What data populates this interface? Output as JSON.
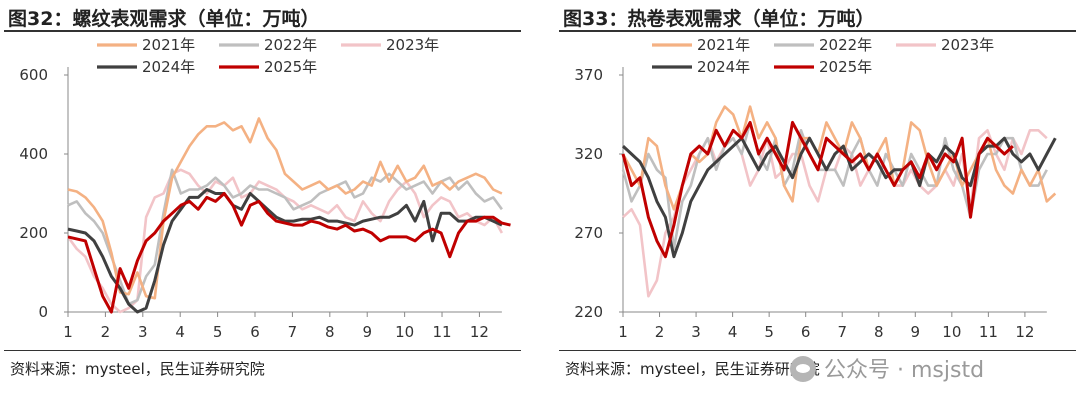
{
  "watermark": {
    "text": "公众号 · msjstd",
    "icon": "wechat-icon"
  },
  "chart_data": [
    {
      "type": "line",
      "title": "图32：螺纹表观需求（单位：万吨）",
      "source": "资料来源：mysteel，民生证券研究院",
      "x_ticks": [
        "1",
        "2",
        "3",
        "4",
        "5",
        "6",
        "7",
        "8",
        "9",
        "10",
        "11",
        "12"
      ],
      "ylim": [
        0,
        600
      ],
      "y_ticks": [
        0,
        200,
        400,
        600
      ],
      "legend_position": "top",
      "series": [
        {
          "name": "2021年",
          "color": "#f4b183",
          "values": [
            310,
            305,
            290,
            265,
            230,
            150,
            50,
            45,
            100,
            40,
            35,
            230,
            340,
            380,
            420,
            450,
            470,
            470,
            480,
            460,
            470,
            430,
            490,
            440,
            410,
            350,
            330,
            310,
            320,
            330,
            310,
            320,
            300,
            310,
            330,
            320,
            380,
            330,
            370,
            330,
            340,
            370,
            320,
            330,
            310,
            330,
            340,
            350,
            340,
            310,
            300
          ]
        },
        {
          "name": "2022年",
          "color": "#bfbfbf",
          "values": [
            270,
            280,
            250,
            230,
            200,
            140,
            80,
            20,
            30,
            90,
            120,
            250,
            360,
            300,
            310,
            310,
            320,
            340,
            320,
            290,
            300,
            320,
            310,
            310,
            300,
            290,
            260,
            270,
            280,
            300,
            310,
            320,
            330,
            290,
            300,
            340,
            330,
            350,
            330,
            310,
            320,
            330,
            300,
            330,
            340,
            310,
            330,
            300,
            280,
            290,
            260
          ]
        },
        {
          "name": "2023年",
          "color": "#f2c4c8",
          "values": [
            190,
            160,
            140,
            90,
            60,
            20,
            0,
            10,
            30,
            240,
            290,
            300,
            350,
            360,
            350,
            320,
            300,
            330,
            320,
            340,
            290,
            300,
            330,
            320,
            310,
            290,
            280,
            260,
            270,
            260,
            250,
            270,
            240,
            230,
            280,
            250,
            230,
            280,
            310,
            330,
            300,
            240,
            270,
            290,
            280,
            240,
            250,
            230,
            220,
            240,
            200
          ]
        },
        {
          "name": "2024年",
          "color": "#404040",
          "values": [
            210,
            205,
            200,
            180,
            140,
            90,
            60,
            20,
            0,
            10,
            80,
            170,
            230,
            260,
            290,
            290,
            310,
            300,
            300,
            270,
            260,
            300,
            280,
            260,
            240,
            230,
            230,
            235,
            235,
            240,
            230,
            230,
            225,
            220,
            230,
            235,
            240,
            240,
            250,
            270,
            230,
            280,
            180,
            250,
            250,
            230,
            230,
            240,
            240,
            230,
            220
          ]
        },
        {
          "name": "2025年",
          "color": "#c00000",
          "values": [
            190,
            185,
            180,
            110,
            40,
            0,
            110,
            60,
            130,
            180,
            200,
            230,
            250,
            270,
            280,
            260,
            290,
            280,
            300,
            270,
            220,
            270,
            280,
            250,
            230,
            225,
            220,
            220,
            230,
            225,
            215,
            210,
            220,
            205,
            210,
            200,
            180,
            190,
            190,
            190,
            180,
            200,
            210,
            200,
            140,
            200,
            230,
            230,
            240,
            240,
            225,
            220
          ]
        }
      ]
    },
    {
      "type": "line",
      "title": "图33：热卷表观需求（单位：万吨）",
      "source": "资料来源：mysteel，民生证券研究院",
      "x_ticks": [
        "1",
        "2",
        "3",
        "4",
        "5",
        "6",
        "7",
        "8",
        "9",
        "10",
        "11",
        "12"
      ],
      "ylim": [
        220,
        370
      ],
      "y_ticks": [
        220,
        270,
        320,
        370
      ],
      "legend_position": "top",
      "series": [
        {
          "name": "2021年",
          "color": "#f4b183",
          "values": [
            320,
            310,
            300,
            330,
            325,
            300,
            285,
            300,
            320,
            315,
            320,
            340,
            350,
            345,
            330,
            350,
            330,
            340,
            330,
            300,
            290,
            330,
            330,
            320,
            340,
            330,
            320,
            340,
            330,
            310,
            320,
            330,
            300,
            310,
            340,
            335,
            315,
            300,
            310,
            320,
            300,
            310,
            320,
            330,
            310,
            300,
            295,
            310,
            300,
            310,
            290,
            295
          ]
        },
        {
          "name": "2022年",
          "color": "#bfbfbf",
          "values": [
            310,
            290,
            300,
            320,
            310,
            305,
            260,
            290,
            300,
            320,
            330,
            310,
            325,
            330,
            320,
            340,
            320,
            310,
            330,
            300,
            310,
            335,
            320,
            310,
            310,
            310,
            300,
            320,
            330,
            310,
            300,
            320,
            310,
            300,
            320,
            310,
            300,
            300,
            330,
            310,
            300,
            280,
            310,
            320,
            320,
            330,
            330,
            310,
            300,
            300,
            310
          ]
        },
        {
          "name": "2023年",
          "color": "#f2c4c8",
          "values": [
            280,
            285,
            275,
            230,
            240,
            270,
            280,
            300,
            310,
            320,
            330,
            315,
            325,
            330,
            320,
            300,
            310,
            330,
            305,
            310,
            320,
            320,
            300,
            290,
            310,
            310,
            325,
            320,
            300,
            310,
            320,
            310,
            300,
            300,
            310,
            300,
            295,
            300,
            310,
            300,
            320,
            285,
            330,
            335,
            320,
            310,
            330,
            320,
            335,
            335,
            330
          ]
        },
        {
          "name": "2024年",
          "color": "#404040",
          "values": [
            325,
            320,
            315,
            305,
            290,
            280,
            255,
            270,
            290,
            300,
            310,
            315,
            320,
            325,
            330,
            320,
            310,
            320,
            325,
            315,
            305,
            320,
            330,
            320,
            310,
            320,
            325,
            310,
            315,
            320,
            315,
            305,
            310,
            310,
            315,
            300,
            320,
            315,
            325,
            320,
            305,
            300,
            320,
            325,
            325,
            330,
            320,
            315,
            320,
            310,
            320,
            330
          ]
        },
        {
          "name": "2025年",
          "color": "#c00000",
          "values": [
            320,
            300,
            305,
            280,
            265,
            255,
            275,
            300,
            320,
            325,
            320,
            335,
            325,
            335,
            330,
            340,
            320,
            330,
            320,
            310,
            340,
            330,
            320,
            310,
            330,
            325,
            320,
            315,
            320,
            310,
            320,
            310,
            300,
            310,
            315,
            305,
            320,
            310,
            320,
            315,
            330,
            280,
            320,
            330,
            325,
            320,
            325
          ]
        }
      ]
    }
  ]
}
